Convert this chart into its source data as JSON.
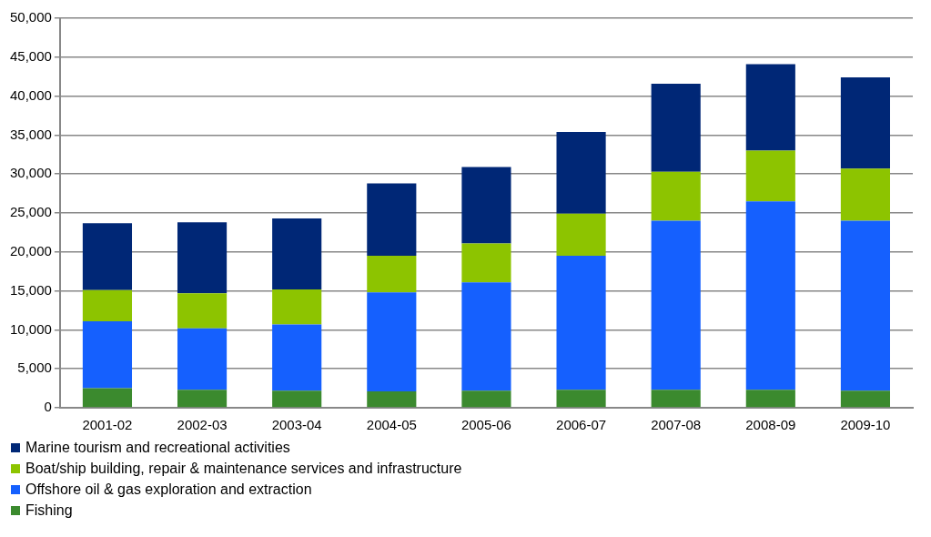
{
  "chart_data": {
    "type": "bar",
    "stacked": true,
    "categories": [
      "2001-02",
      "2002-03",
      "2003-04",
      "2004-05",
      "2005-06",
      "2006-07",
      "2007-08",
      "2008-09",
      "2009-10"
    ],
    "series": [
      {
        "name": "Fishing",
        "color": "#3b8a2e",
        "values": [
          2500,
          2300,
          2200,
          2100,
          2200,
          2300,
          2300,
          2300,
          2200
        ]
      },
      {
        "name": "Offshore oil & gas exploration and extraction",
        "color": "#1560fe",
        "values": [
          8600,
          7900,
          8500,
          12700,
          13900,
          17200,
          21700,
          24200,
          21800
        ]
      },
      {
        "name": "Boat/ship building, repair & maintenance services and infrastructure",
        "color": "#8dc400",
        "values": [
          4000,
          4500,
          4500,
          4700,
          5000,
          5400,
          6300,
          6500,
          6700
        ]
      },
      {
        "name": "Marine tourism and recreational activities",
        "color": "#002776",
        "values": [
          8600,
          9100,
          9100,
          9300,
          9800,
          10500,
          11300,
          11100,
          11700
        ]
      }
    ],
    "ylim": [
      0,
      50000
    ],
    "yticks": [
      0,
      {
        "value": 5000,
        "label": "5,000"
      },
      {
        "value": 10000,
        "label": "10,000"
      },
      {
        "value": 15000,
        "label": "15,000"
      },
      {
        "value": 20000,
        "label": "20,000"
      },
      {
        "value": 25000,
        "label": "25,000"
      },
      {
        "value": 30000,
        "label": "30,000"
      },
      {
        "value": 35000,
        "label": "35,000"
      },
      {
        "value": 40000,
        "label": "40,000"
      },
      {
        "value": 45000,
        "label": "45,000"
      },
      {
        "value": 50000,
        "label": "50,000"
      }
    ],
    "grid": "y",
    "legend": "bottom left"
  }
}
